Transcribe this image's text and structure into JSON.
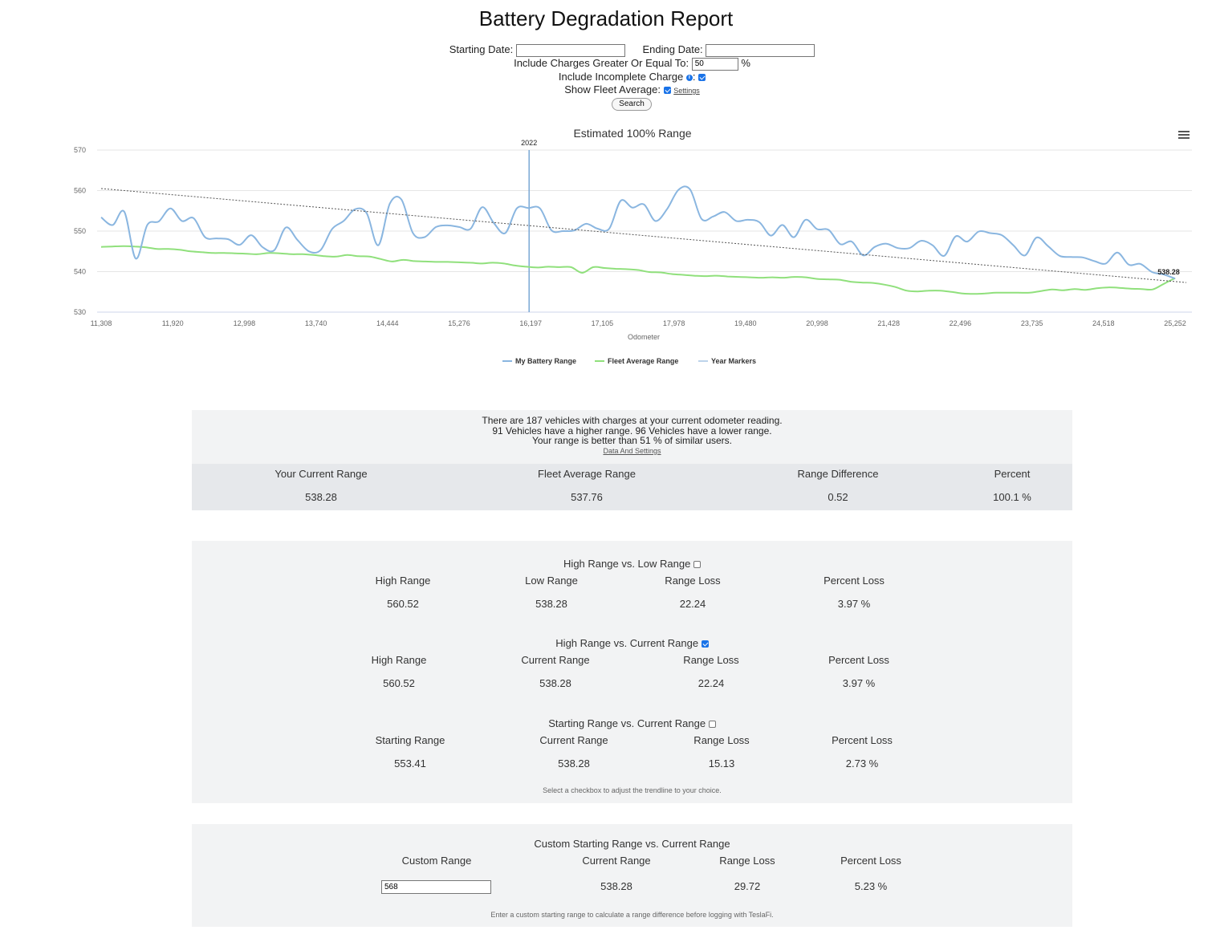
{
  "page": {
    "title": "Battery Degradation Report"
  },
  "filters": {
    "starting_date_label": "Starting Date:",
    "starting_date_value": "",
    "ending_date_label": "Ending Date:",
    "ending_date_value": "",
    "min_charge_label": "Include Charges Greater Or Equal To:",
    "min_charge_value": "50",
    "min_charge_unit": "%",
    "incomplete_label": "Include Incomplete Charge",
    "incomplete_suffix": ":",
    "incomplete_checked": true,
    "fleet_label": "Show Fleet Average:",
    "fleet_checked": true,
    "settings_link": "Settings",
    "search_button": "Search"
  },
  "chart_data": {
    "type": "line",
    "title": "Estimated 100% Range",
    "xlabel": "Odometer",
    "ylabel": "",
    "ylim": [
      530,
      570
    ],
    "yticks": [
      "570",
      "560",
      "550",
      "540",
      "530"
    ],
    "xticks": [
      "11,308",
      "11,920",
      "12,998",
      "13,740",
      "14,444",
      "15,276",
      "16,197",
      "17,105",
      "17,978",
      "19,480",
      "20,998",
      "21,428",
      "22,496",
      "23,735",
      "24,518",
      "25,252"
    ],
    "year_marker": {
      "label": "2022",
      "at_tick": "16,197"
    },
    "last_value_label": "538.28",
    "series": [
      {
        "name": "My Battery Range",
        "color": "#8ab6e0",
        "values": [
          553.4,
          551.5,
          554.8,
          543.2,
          551.5,
          552.4,
          555.6,
          552.5,
          553.2,
          548.5,
          548.2,
          548.0,
          546.6,
          549.0,
          546.0,
          545.3,
          550.9,
          547.8,
          545.0,
          545.3,
          550.5,
          552.5,
          555.4,
          554.4,
          546.5,
          556.8,
          557.8,
          549.5,
          548.5,
          551.0,
          551.4,
          551.0,
          550.6,
          555.9,
          552.0,
          549.5,
          555.6,
          555.7,
          555.6,
          550.2,
          550.0,
          550.2,
          551.8,
          550.6,
          550.6,
          557.5,
          555.8,
          556.6,
          552.5,
          555.4,
          560.2,
          560.3,
          553.0,
          553.6,
          554.7,
          552.5,
          552.8,
          552.2,
          548.9,
          551.5,
          548.5,
          552.8,
          550.5,
          550.3,
          546.8,
          547.4,
          544.0,
          546.1,
          546.9,
          545.8,
          545.8,
          547.6,
          546.5,
          543.9,
          548.7,
          547.4,
          549.9,
          549.5,
          549.0,
          546.5,
          544.0,
          548.4,
          546.3,
          543.9,
          543.6,
          543.5,
          542.6,
          542.0,
          544.7,
          541.7,
          541.9,
          539.9,
          539.3,
          538.28
        ]
      },
      {
        "name": "Fleet Average Range",
        "color": "#90e07c",
        "values": [
          546.1,
          546.2,
          546.3,
          546.2,
          546.0,
          545.6,
          545.6,
          545.4,
          545.0,
          544.8,
          544.6,
          544.6,
          544.5,
          544.4,
          544.3,
          544.6,
          544.5,
          544.3,
          544.3,
          544.1,
          543.8,
          543.7,
          544.1,
          543.8,
          543.7,
          543.1,
          542.5,
          542.9,
          542.6,
          542.5,
          542.4,
          542.4,
          542.3,
          542.2,
          542.0,
          542.2,
          542.0,
          541.5,
          541.2,
          541.0,
          541.2,
          541.1,
          541.1,
          539.7,
          541.1,
          540.9,
          540.7,
          540.6,
          540.4,
          539.9,
          539.8,
          539.4,
          539.2,
          539.0,
          538.9,
          539.0,
          538.8,
          538.7,
          538.6,
          538.5,
          538.6,
          538.5,
          538.7,
          538.6,
          538.2,
          538.1,
          538.0,
          537.5,
          537.3,
          537.2,
          536.8,
          536.2,
          535.3,
          535.1,
          535.3,
          535.3,
          535.0,
          534.6,
          534.5,
          534.6,
          534.8,
          534.8,
          534.8,
          534.8,
          535.2,
          535.6,
          535.4,
          535.7,
          535.5,
          535.9,
          536.1,
          536.0,
          535.8,
          535.7,
          535.6,
          537.0,
          538.4
        ]
      },
      {
        "name": "Year Markers",
        "color": "#7aa7d4",
        "values": []
      }
    ],
    "trendline": {
      "start": 560.5,
      "end": 538.3
    },
    "legend": [
      "My Battery Range",
      "Fleet Average Range",
      "Year Markers"
    ]
  },
  "fleet_summary": {
    "line1": "There are 187 vehicles with charges at your current odometer reading.",
    "line2": "91 Vehicles have a higher range. 96 Vehicles have a lower range.",
    "line3": "Your range is better than 51 % of similar users.",
    "link": "Data And Settings",
    "headers": [
      "Your Current Range",
      "Fleet Average Range",
      "Range Difference",
      "Percent"
    ],
    "values": [
      "538.28",
      "537.76",
      "0.52",
      "100.1 %"
    ]
  },
  "comparisons": {
    "high_low": {
      "title": "High Range vs. Low Range",
      "checked": false,
      "headers": [
        "High Range",
        "Low Range",
        "Range Loss",
        "Percent Loss"
      ],
      "values": [
        "560.52",
        "538.28",
        "22.24",
        "3.97 %"
      ]
    },
    "high_current": {
      "title": "High Range vs. Current Range",
      "checked": true,
      "headers": [
        "High Range",
        "Current Range",
        "Range Loss",
        "Percent Loss"
      ],
      "values": [
        "560.52",
        "538.28",
        "22.24",
        "3.97 %"
      ]
    },
    "start_current": {
      "title": "Starting Range vs. Current Range",
      "checked": false,
      "headers": [
        "Starting Range",
        "Current Range",
        "Range Loss",
        "Percent Loss"
      ],
      "values": [
        "553.41",
        "538.28",
        "15.13",
        "2.73 %"
      ]
    },
    "note": "Select a checkbox to adjust the trendline to your choice."
  },
  "custom": {
    "title": "Custom Starting Range vs. Current Range",
    "headers": [
      "Custom Range",
      "Current Range",
      "Range Loss",
      "Percent Loss"
    ],
    "input_value": "568",
    "values": [
      "538.28",
      "29.72",
      "5.23 %"
    ],
    "note": "Enter a custom starting range to calculate a range difference before logging with TeslaFi."
  }
}
